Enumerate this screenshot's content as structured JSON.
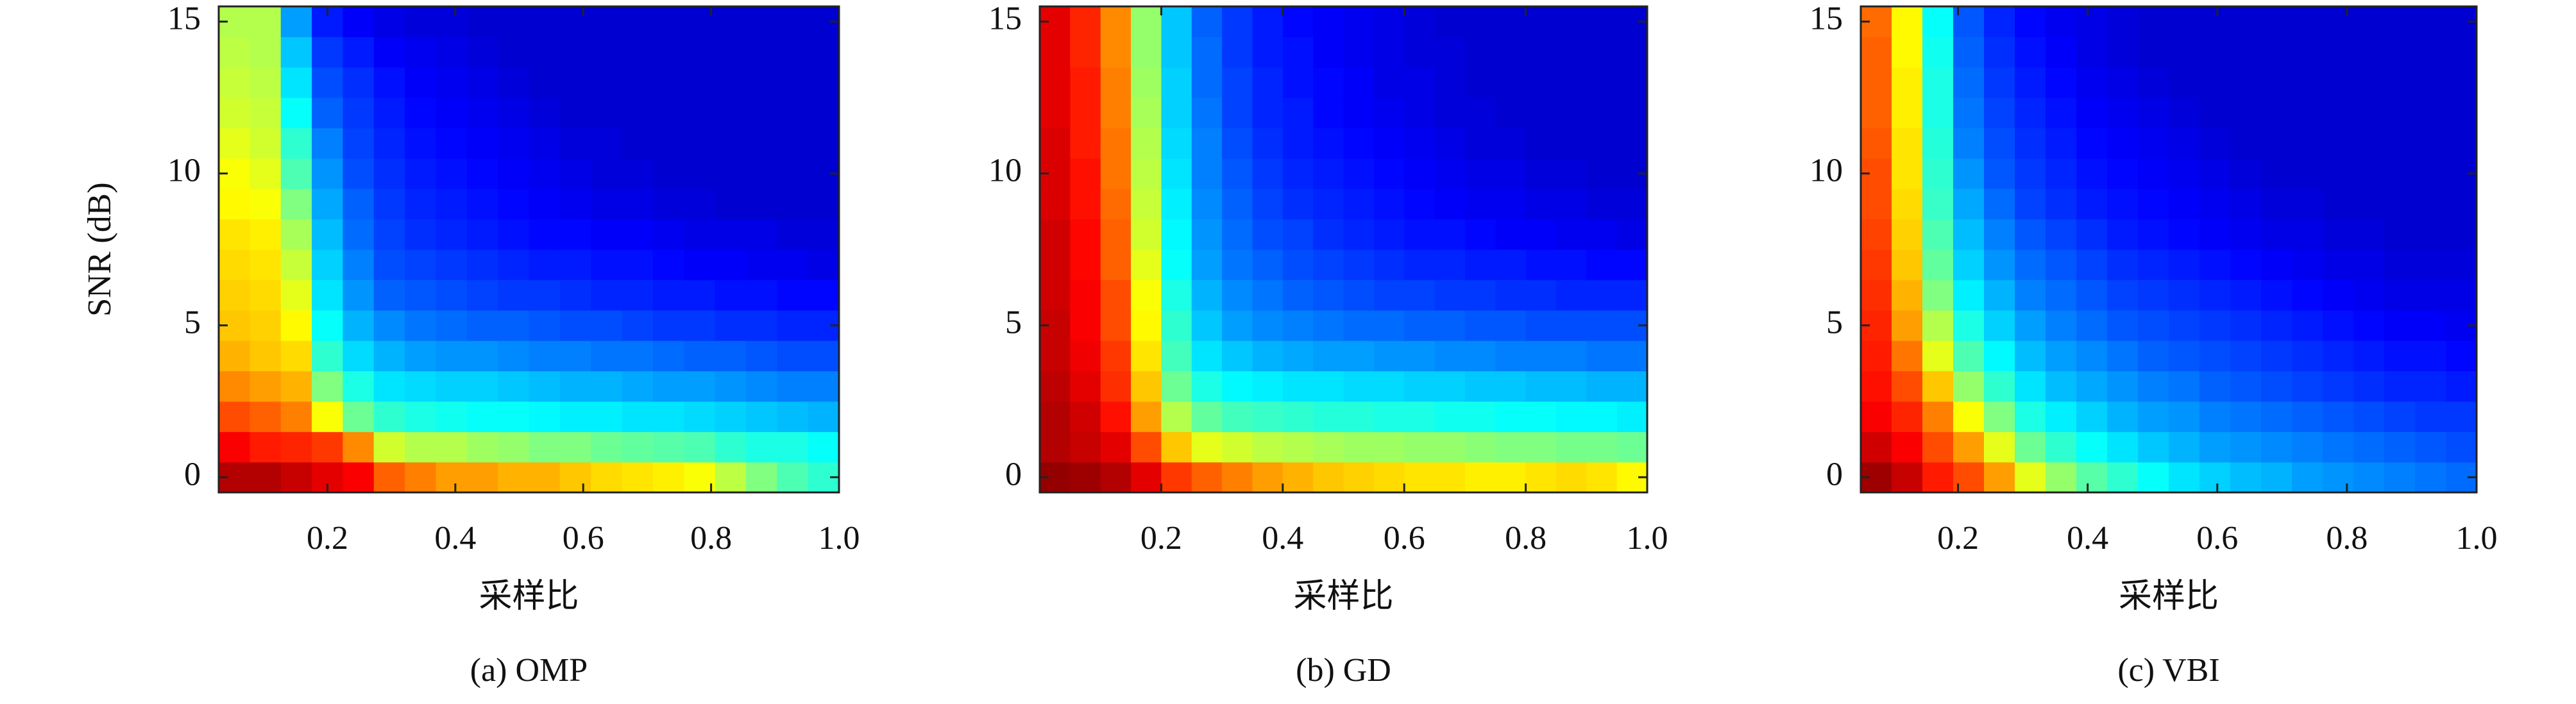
{
  "chart_data": [
    {
      "type": "heatmap",
      "colormap": "jet",
      "caption": "(a) OMP",
      "xlabel": "采样比",
      "ylabel": "SNR (dB)",
      "xlim": [
        0.03,
        1.0
      ],
      "ylim": [
        -0.5,
        15.5
      ],
      "xticks": [
        0.2,
        0.4,
        0.6,
        0.8,
        {
          "value": 1.0,
          "label": "1.0"
        }
      ],
      "yticks": [
        0,
        5,
        10,
        15
      ],
      "y": [
        0,
        1,
        2,
        3,
        4,
        5,
        6,
        7,
        8,
        9,
        10,
        11,
        12,
        13,
        14,
        15
      ],
      "z": [
        [
          0.95,
          0.95,
          0.93,
          0.9,
          0.88,
          0.78,
          0.75,
          0.72,
          0.72,
          0.7,
          0.7,
          0.68,
          0.66,
          0.65,
          0.64,
          0.62,
          0.56,
          0.5,
          0.45,
          0.42
        ],
        [
          0.88,
          0.85,
          0.84,
          0.82,
          0.74,
          0.58,
          0.55,
          0.55,
          0.53,
          0.52,
          0.5,
          0.5,
          0.48,
          0.47,
          0.46,
          0.45,
          0.42,
          0.4,
          0.4,
          0.38
        ],
        [
          0.8,
          0.78,
          0.75,
          0.62,
          0.48,
          0.42,
          0.4,
          0.39,
          0.38,
          0.38,
          0.37,
          0.36,
          0.36,
          0.35,
          0.35,
          0.34,
          0.33,
          0.32,
          0.31,
          0.3
        ],
        [
          0.74,
          0.72,
          0.7,
          0.5,
          0.4,
          0.35,
          0.34,
          0.33,
          0.33,
          0.32,
          0.31,
          0.3,
          0.3,
          0.29,
          0.28,
          0.28,
          0.27,
          0.26,
          0.25,
          0.25
        ],
        [
          0.7,
          0.68,
          0.66,
          0.42,
          0.34,
          0.3,
          0.28,
          0.27,
          0.27,
          0.26,
          0.25,
          0.25,
          0.24,
          0.24,
          0.23,
          0.22,
          0.22,
          0.21,
          0.2,
          0.2
        ],
        [
          0.68,
          0.67,
          0.63,
          0.38,
          0.3,
          0.26,
          0.24,
          0.23,
          0.22,
          0.22,
          0.21,
          0.2,
          0.2,
          0.19,
          0.18,
          0.18,
          0.17,
          0.17,
          0.16,
          0.16
        ],
        [
          0.67,
          0.66,
          0.6,
          0.35,
          0.27,
          0.22,
          0.21,
          0.2,
          0.19,
          0.18,
          0.18,
          0.17,
          0.16,
          0.16,
          0.15,
          0.15,
          0.14,
          0.14,
          0.13,
          0.13
        ],
        [
          0.66,
          0.65,
          0.57,
          0.33,
          0.25,
          0.2,
          0.19,
          0.18,
          0.17,
          0.16,
          0.15,
          0.15,
          0.14,
          0.14,
          0.13,
          0.12,
          0.12,
          0.11,
          0.11,
          0.1
        ],
        [
          0.65,
          0.64,
          0.54,
          0.31,
          0.23,
          0.19,
          0.17,
          0.16,
          0.15,
          0.14,
          0.13,
          0.13,
          0.12,
          0.12,
          0.11,
          0.1,
          0.1,
          0.1,
          0.09,
          0.09
        ],
        [
          0.63,
          0.62,
          0.5,
          0.29,
          0.22,
          0.18,
          0.16,
          0.15,
          0.14,
          0.13,
          0.12,
          0.11,
          0.1,
          0.1,
          0.09,
          0.09,
          0.08,
          0.08,
          0.08,
          0.08
        ],
        [
          0.62,
          0.6,
          0.45,
          0.27,
          0.2,
          0.17,
          0.15,
          0.14,
          0.13,
          0.12,
          0.11,
          0.1,
          0.09,
          0.09,
          0.08,
          0.08,
          0.08,
          0.08,
          0.08,
          0.08
        ],
        [
          0.6,
          0.58,
          0.42,
          0.25,
          0.19,
          0.16,
          0.14,
          0.13,
          0.12,
          0.11,
          0.1,
          0.09,
          0.09,
          0.08,
          0.08,
          0.08,
          0.08,
          0.08,
          0.08,
          0.08
        ],
        [
          0.58,
          0.57,
          0.38,
          0.22,
          0.18,
          0.15,
          0.13,
          0.12,
          0.11,
          0.1,
          0.09,
          0.08,
          0.08,
          0.08,
          0.08,
          0.08,
          0.08,
          0.08,
          0.08,
          0.08
        ],
        [
          0.57,
          0.56,
          0.35,
          0.2,
          0.17,
          0.14,
          0.12,
          0.11,
          0.1,
          0.09,
          0.08,
          0.08,
          0.08,
          0.08,
          0.08,
          0.08,
          0.08,
          0.08,
          0.08,
          0.08
        ],
        [
          0.56,
          0.55,
          0.32,
          0.18,
          0.15,
          0.12,
          0.11,
          0.1,
          0.09,
          0.08,
          0.08,
          0.08,
          0.08,
          0.08,
          0.08,
          0.08,
          0.08,
          0.08,
          0.08,
          0.08
        ],
        [
          0.55,
          0.55,
          0.28,
          0.15,
          0.12,
          0.1,
          0.09,
          0.09,
          0.08,
          0.08,
          0.08,
          0.08,
          0.08,
          0.08,
          0.08,
          0.08,
          0.08,
          0.08,
          0.08,
          0.08
        ]
      ]
    },
    {
      "type": "heatmap",
      "colormap": "jet",
      "caption": "(b) GD",
      "xlabel": "采样比",
      "xlim": [
        0.0,
        1.0
      ],
      "ylim": [
        -0.5,
        15.5
      ],
      "xticks": [
        0.2,
        0.4,
        0.6,
        0.8,
        {
          "value": 1.0,
          "label": "1.0"
        }
      ],
      "yticks": [
        0,
        5,
        10,
        15
      ],
      "y": [
        0,
        1,
        2,
        3,
        4,
        5,
        6,
        7,
        8,
        9,
        10,
        11,
        12,
        13,
        14,
        15
      ],
      "z": [
        [
          0.98,
          0.97,
          0.95,
          0.9,
          0.82,
          0.78,
          0.75,
          0.72,
          0.7,
          0.68,
          0.67,
          0.66,
          0.65,
          0.65,
          0.64,
          0.64,
          0.65,
          0.66,
          0.65,
          0.63
        ],
        [
          0.95,
          0.93,
          0.9,
          0.8,
          0.68,
          0.6,
          0.58,
          0.56,
          0.55,
          0.54,
          0.53,
          0.53,
          0.52,
          0.52,
          0.51,
          0.5,
          0.5,
          0.49,
          0.49,
          0.48
        ],
        [
          0.95,
          0.92,
          0.86,
          0.72,
          0.55,
          0.47,
          0.44,
          0.43,
          0.42,
          0.41,
          0.41,
          0.4,
          0.4,
          0.39,
          0.39,
          0.38,
          0.38,
          0.37,
          0.37,
          0.36
        ],
        [
          0.94,
          0.9,
          0.83,
          0.68,
          0.48,
          0.4,
          0.37,
          0.36,
          0.35,
          0.35,
          0.34,
          0.34,
          0.33,
          0.33,
          0.32,
          0.32,
          0.31,
          0.31,
          0.3,
          0.3
        ],
        [
          0.93,
          0.89,
          0.82,
          0.65,
          0.44,
          0.35,
          0.32,
          0.3,
          0.29,
          0.28,
          0.28,
          0.27,
          0.27,
          0.26,
          0.26,
          0.25,
          0.25,
          0.25,
          0.24,
          0.24
        ],
        [
          0.93,
          0.88,
          0.8,
          0.63,
          0.42,
          0.32,
          0.28,
          0.26,
          0.25,
          0.24,
          0.23,
          0.23,
          0.22,
          0.22,
          0.21,
          0.21,
          0.2,
          0.2,
          0.2,
          0.2
        ],
        [
          0.92,
          0.88,
          0.8,
          0.62,
          0.4,
          0.3,
          0.26,
          0.24,
          0.22,
          0.21,
          0.2,
          0.19,
          0.19,
          0.18,
          0.18,
          0.17,
          0.17,
          0.16,
          0.16,
          0.16
        ],
        [
          0.92,
          0.87,
          0.78,
          0.6,
          0.38,
          0.28,
          0.24,
          0.22,
          0.2,
          0.19,
          0.18,
          0.17,
          0.16,
          0.16,
          0.15,
          0.15,
          0.14,
          0.14,
          0.13,
          0.13
        ],
        [
          0.92,
          0.87,
          0.78,
          0.58,
          0.37,
          0.27,
          0.23,
          0.2,
          0.19,
          0.17,
          0.16,
          0.15,
          0.14,
          0.14,
          0.13,
          0.12,
          0.12,
          0.11,
          0.11,
          0.1
        ],
        [
          0.91,
          0.86,
          0.77,
          0.57,
          0.36,
          0.26,
          0.22,
          0.19,
          0.17,
          0.16,
          0.15,
          0.14,
          0.13,
          0.12,
          0.11,
          0.11,
          0.1,
          0.1,
          0.09,
          0.09
        ],
        [
          0.91,
          0.86,
          0.76,
          0.56,
          0.35,
          0.25,
          0.21,
          0.18,
          0.16,
          0.15,
          0.14,
          0.13,
          0.12,
          0.11,
          0.1,
          0.1,
          0.09,
          0.09,
          0.08,
          0.08
        ],
        [
          0.91,
          0.85,
          0.76,
          0.55,
          0.34,
          0.25,
          0.2,
          0.17,
          0.15,
          0.14,
          0.13,
          0.12,
          0.11,
          0.1,
          0.09,
          0.09,
          0.08,
          0.08,
          0.08,
          0.08
        ],
        [
          0.9,
          0.85,
          0.75,
          0.54,
          0.33,
          0.24,
          0.19,
          0.16,
          0.15,
          0.13,
          0.12,
          0.11,
          0.1,
          0.09,
          0.09,
          0.08,
          0.08,
          0.08,
          0.08,
          0.08
        ],
        [
          0.9,
          0.85,
          0.75,
          0.53,
          0.33,
          0.23,
          0.19,
          0.16,
          0.14,
          0.13,
          0.12,
          0.1,
          0.1,
          0.09,
          0.08,
          0.08,
          0.08,
          0.08,
          0.08,
          0.08
        ],
        [
          0.9,
          0.84,
          0.74,
          0.52,
          0.32,
          0.23,
          0.18,
          0.15,
          0.14,
          0.12,
          0.11,
          0.1,
          0.09,
          0.09,
          0.08,
          0.08,
          0.08,
          0.08,
          0.08,
          0.08
        ],
        [
          0.9,
          0.84,
          0.74,
          0.52,
          0.32,
          0.22,
          0.18,
          0.15,
          0.13,
          0.12,
          0.11,
          0.1,
          0.09,
          0.08,
          0.08,
          0.08,
          0.08,
          0.08,
          0.08,
          0.08
        ]
      ]
    },
    {
      "type": "heatmap",
      "colormap": "jet",
      "caption": "(c) VBI",
      "xlabel": "采样比",
      "xlim": [
        0.05,
        1.0
      ],
      "ylim": [
        -0.5,
        15.5
      ],
      "xticks": [
        0.2,
        0.4,
        0.6,
        0.8,
        {
          "value": 1.0,
          "label": "1.0"
        }
      ],
      "yticks": [
        0,
        5,
        10,
        15
      ],
      "y": [
        0,
        1,
        2,
        3,
        4,
        5,
        6,
        7,
        8,
        9,
        10,
        11,
        12,
        13,
        14,
        15
      ],
      "z": [
        [
          0.97,
          0.93,
          0.85,
          0.8,
          0.72,
          0.6,
          0.52,
          0.46,
          0.42,
          0.38,
          0.35,
          0.33,
          0.31,
          0.3,
          0.28,
          0.27,
          0.26,
          0.25,
          0.24,
          0.23
        ],
        [
          0.92,
          0.88,
          0.8,
          0.72,
          0.6,
          0.48,
          0.42,
          0.38,
          0.35,
          0.32,
          0.3,
          0.28,
          0.27,
          0.26,
          0.25,
          0.24,
          0.23,
          0.22,
          0.21,
          0.2
        ],
        [
          0.88,
          0.84,
          0.75,
          0.62,
          0.5,
          0.4,
          0.36,
          0.33,
          0.3,
          0.28,
          0.27,
          0.25,
          0.24,
          0.23,
          0.22,
          0.21,
          0.2,
          0.19,
          0.18,
          0.18
        ],
        [
          0.86,
          0.8,
          0.68,
          0.52,
          0.42,
          0.35,
          0.31,
          0.29,
          0.27,
          0.25,
          0.24,
          0.22,
          0.21,
          0.2,
          0.19,
          0.18,
          0.17,
          0.16,
          0.16,
          0.15
        ],
        [
          0.85,
          0.76,
          0.6,
          0.45,
          0.37,
          0.31,
          0.28,
          0.26,
          0.24,
          0.22,
          0.21,
          0.2,
          0.19,
          0.18,
          0.17,
          0.16,
          0.15,
          0.14,
          0.14,
          0.13
        ],
        [
          0.84,
          0.72,
          0.55,
          0.4,
          0.33,
          0.28,
          0.25,
          0.23,
          0.21,
          0.2,
          0.19,
          0.18,
          0.17,
          0.16,
          0.15,
          0.14,
          0.13,
          0.12,
          0.12,
          0.11
        ],
        [
          0.83,
          0.7,
          0.5,
          0.36,
          0.3,
          0.25,
          0.23,
          0.21,
          0.19,
          0.18,
          0.17,
          0.16,
          0.15,
          0.14,
          0.13,
          0.12,
          0.11,
          0.1,
          0.1,
          0.1
        ],
        [
          0.82,
          0.68,
          0.47,
          0.33,
          0.27,
          0.23,
          0.21,
          0.19,
          0.17,
          0.16,
          0.15,
          0.14,
          0.13,
          0.12,
          0.11,
          0.1,
          0.1,
          0.09,
          0.09,
          0.09
        ],
        [
          0.81,
          0.67,
          0.45,
          0.31,
          0.25,
          0.21,
          0.19,
          0.17,
          0.15,
          0.14,
          0.13,
          0.12,
          0.11,
          0.1,
          0.1,
          0.09,
          0.09,
          0.08,
          0.08,
          0.08
        ],
        [
          0.8,
          0.66,
          0.43,
          0.29,
          0.23,
          0.19,
          0.17,
          0.15,
          0.14,
          0.13,
          0.12,
          0.11,
          0.1,
          0.09,
          0.09,
          0.08,
          0.08,
          0.08,
          0.08,
          0.08
        ],
        [
          0.8,
          0.65,
          0.42,
          0.27,
          0.21,
          0.18,
          0.16,
          0.14,
          0.13,
          0.12,
          0.11,
          0.1,
          0.09,
          0.08,
          0.08,
          0.08,
          0.08,
          0.08,
          0.08,
          0.08
        ],
        [
          0.79,
          0.65,
          0.41,
          0.25,
          0.2,
          0.17,
          0.15,
          0.13,
          0.12,
          0.11,
          0.1,
          0.09,
          0.08,
          0.08,
          0.08,
          0.08,
          0.08,
          0.08,
          0.08,
          0.08
        ],
        [
          0.78,
          0.64,
          0.4,
          0.24,
          0.19,
          0.16,
          0.14,
          0.12,
          0.11,
          0.1,
          0.09,
          0.08,
          0.08,
          0.08,
          0.08,
          0.08,
          0.08,
          0.08,
          0.08,
          0.08
        ],
        [
          0.78,
          0.64,
          0.4,
          0.23,
          0.18,
          0.15,
          0.13,
          0.11,
          0.1,
          0.09,
          0.08,
          0.08,
          0.08,
          0.08,
          0.08,
          0.08,
          0.08,
          0.08,
          0.08,
          0.08
        ],
        [
          0.78,
          0.63,
          0.39,
          0.22,
          0.17,
          0.14,
          0.12,
          0.1,
          0.09,
          0.08,
          0.08,
          0.08,
          0.08,
          0.08,
          0.08,
          0.08,
          0.08,
          0.08,
          0.08,
          0.08
        ],
        [
          0.77,
          0.63,
          0.38,
          0.21,
          0.16,
          0.13,
          0.11,
          0.1,
          0.09,
          0.08,
          0.08,
          0.08,
          0.08,
          0.08,
          0.08,
          0.08,
          0.08,
          0.08,
          0.08,
          0.08
        ]
      ]
    }
  ]
}
